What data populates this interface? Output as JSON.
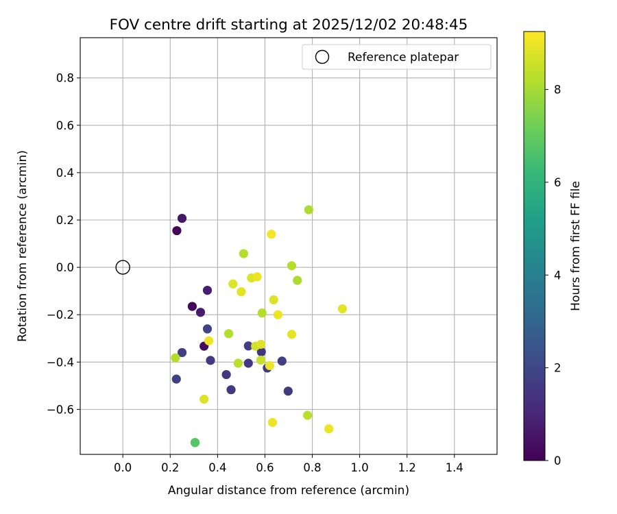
{
  "chart_data": {
    "type": "scatter",
    "title": "FOV centre drift starting at 2025/12/02 20:48:45",
    "xlabel": "Angular distance from reference (arcmin)",
    "ylabel": "Rotation from reference (arcmin)",
    "xlim": [
      -0.18,
      1.58
    ],
    "ylim": [
      -0.79,
      0.97
    ],
    "xticks": [
      0.0,
      0.2,
      0.4,
      0.6,
      0.8,
      1.0,
      1.2,
      1.4
    ],
    "xtick_labels": [
      "0.0",
      "0.2",
      "0.4",
      "0.6",
      "0.8",
      "1.0",
      "1.2",
      "1.4"
    ],
    "yticks": [
      -0.6,
      -0.4,
      -0.2,
      0.0,
      0.2,
      0.4,
      0.6,
      0.8
    ],
    "ytick_labels": [
      "−0.6",
      "−0.4",
      "−0.2",
      "0.0",
      "0.2",
      "0.4",
      "0.6",
      "0.8"
    ],
    "grid": true,
    "legend": {
      "position": "top-right",
      "entries": [
        {
          "label": "Reference platepar",
          "marker": "open-circle"
        }
      ]
    },
    "reference_point": {
      "x": 0.0,
      "y": 0.0
    },
    "colorbar": {
      "label": "Hours from first FF file",
      "colormap": "viridis",
      "range": [
        0,
        9.25
      ],
      "ticks": [
        0,
        2,
        4,
        6,
        8
      ],
      "tick_labels": [
        "0",
        "2",
        "4",
        "6",
        "8"
      ]
    },
    "points": [
      {
        "x": 0.228,
        "y": 0.155,
        "hours": 0.1
      },
      {
        "x": 0.25,
        "y": 0.207,
        "hours": 0.6
      },
      {
        "x": 0.293,
        "y": -0.165,
        "hours": 0.2
      },
      {
        "x": 0.328,
        "y": -0.19,
        "hours": 0.7
      },
      {
        "x": 0.343,
        "y": -0.333,
        "hours": 0.3
      },
      {
        "x": 0.357,
        "y": -0.097,
        "hours": 0.8
      },
      {
        "x": 0.357,
        "y": -0.26,
        "hours": 1.9
      },
      {
        "x": 0.25,
        "y": -0.36,
        "hours": 1.7
      },
      {
        "x": 0.37,
        "y": -0.393,
        "hours": 1.6
      },
      {
        "x": 0.226,
        "y": -0.472,
        "hours": 1.8
      },
      {
        "x": 0.437,
        "y": -0.453,
        "hours": 1.5
      },
      {
        "x": 0.457,
        "y": -0.517,
        "hours": 1.6
      },
      {
        "x": 0.53,
        "y": -0.332,
        "hours": 1.7
      },
      {
        "x": 0.53,
        "y": -0.405,
        "hours": 1.6
      },
      {
        "x": 0.585,
        "y": -0.357,
        "hours": 1.5
      },
      {
        "x": 0.61,
        "y": -0.425,
        "hours": 1.6
      },
      {
        "x": 0.672,
        "y": -0.396,
        "hours": 1.7
      },
      {
        "x": 0.698,
        "y": -0.523,
        "hours": 1.6
      },
      {
        "x": 0.305,
        "y": -0.74,
        "hours": 6.6
      },
      {
        "x": 0.305,
        "y": -0.74,
        "hours": 6.8
      },
      {
        "x": 0.222,
        "y": -0.382,
        "hours": 8.2
      },
      {
        "x": 0.343,
        "y": -0.557,
        "hours": 8.8
      },
      {
        "x": 0.363,
        "y": -0.31,
        "hours": 9.0
      },
      {
        "x": 0.447,
        "y": -0.28,
        "hours": 8.2
      },
      {
        "x": 0.487,
        "y": -0.405,
        "hours": 8.3
      },
      {
        "x": 0.465,
        "y": -0.07,
        "hours": 8.8
      },
      {
        "x": 0.5,
        "y": -0.103,
        "hours": 8.9
      },
      {
        "x": 0.51,
        "y": 0.058,
        "hours": 8.2
      },
      {
        "x": 0.543,
        "y": -0.045,
        "hours": 8.8
      },
      {
        "x": 0.567,
        "y": -0.04,
        "hours": 9.0
      },
      {
        "x": 0.56,
        "y": -0.333,
        "hours": 8.6
      },
      {
        "x": 0.583,
        "y": -0.325,
        "hours": 8.8
      },
      {
        "x": 0.583,
        "y": -0.392,
        "hours": 8.5
      },
      {
        "x": 0.588,
        "y": -0.193,
        "hours": 8.2
      },
      {
        "x": 0.62,
        "y": -0.415,
        "hours": 9.0
      },
      {
        "x": 0.627,
        "y": 0.14,
        "hours": 9.1
      },
      {
        "x": 0.637,
        "y": -0.137,
        "hours": 8.8
      },
      {
        "x": 0.655,
        "y": -0.2,
        "hours": 9.0
      },
      {
        "x": 0.632,
        "y": -0.655,
        "hours": 9.0
      },
      {
        "x": 0.713,
        "y": 0.007,
        "hours": 8.2
      },
      {
        "x": 0.713,
        "y": -0.283,
        "hours": 8.9
      },
      {
        "x": 0.737,
        "y": -0.055,
        "hours": 8.1
      },
      {
        "x": 0.78,
        "y": -0.625,
        "hours": 8.3
      },
      {
        "x": 0.785,
        "y": 0.243,
        "hours": 8.1
      },
      {
        "x": 0.87,
        "y": -0.682,
        "hours": 9.0
      },
      {
        "x": 0.927,
        "y": -0.175,
        "hours": 8.9
      }
    ]
  }
}
